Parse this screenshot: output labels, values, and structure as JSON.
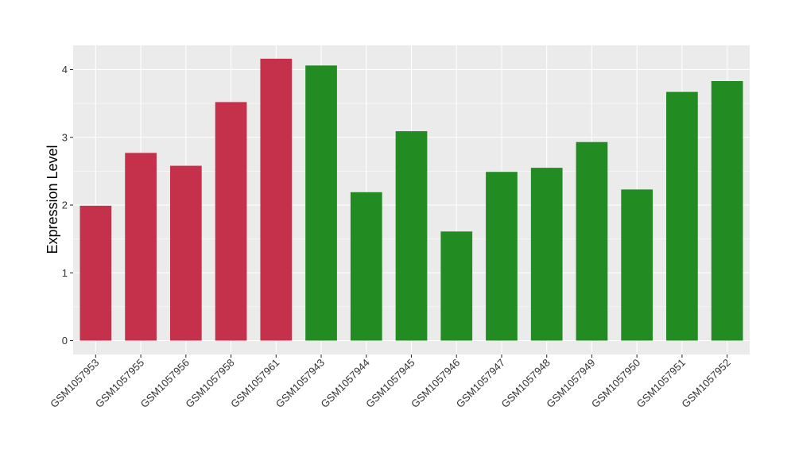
{
  "chart_data": {
    "type": "bar",
    "ylabel": "Expression Level",
    "xlabel": "",
    "ylim": [
      0,
      4.35
    ],
    "y_ticks": [
      "0",
      "1",
      "2",
      "3",
      "4"
    ],
    "grid": true,
    "panel_background": "#EBEBEB",
    "colors": {
      "group_a": "#C5314A",
      "group_b": "#228B22"
    },
    "categories": [
      "GSM1057953",
      "GSM1057955",
      "GSM1057956",
      "GSM1057958",
      "GSM1057961",
      "GSM1057943",
      "GSM1057944",
      "GSM1057945",
      "GSM1057946",
      "GSM1057947",
      "GSM1057948",
      "GSM1057949",
      "GSM1057950",
      "GSM1057951",
      "GSM1057952"
    ],
    "values": [
      1.99,
      2.77,
      2.58,
      3.52,
      4.16,
      4.06,
      2.19,
      3.09,
      1.61,
      2.49,
      2.55,
      2.93,
      2.23,
      3.67,
      3.83
    ],
    "groups": [
      "group_a",
      "group_a",
      "group_a",
      "group_a",
      "group_a",
      "group_b",
      "group_b",
      "group_b",
      "group_b",
      "group_b",
      "group_b",
      "group_b",
      "group_b",
      "group_b",
      "group_b"
    ]
  }
}
